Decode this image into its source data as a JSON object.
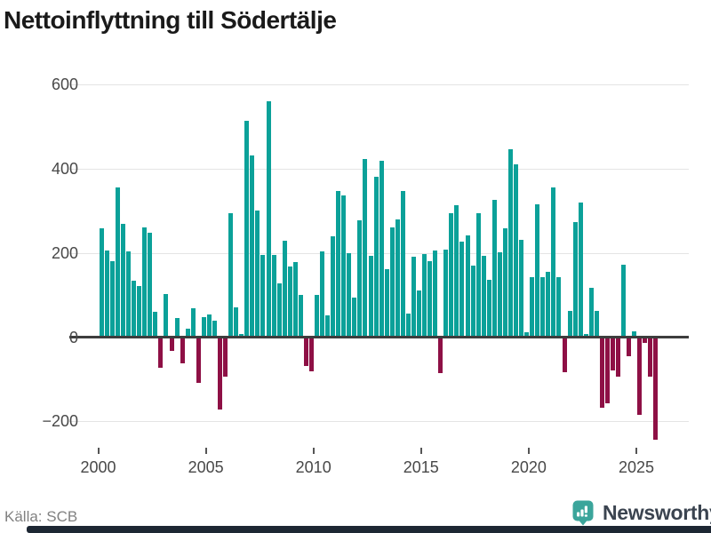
{
  "title": "Nettoinflyttning till Södertälje",
  "source": "Källa: SCB",
  "brand": {
    "name": "Newsworthy",
    "logo_icon": "speech-bubble-bar-chart-icon"
  },
  "colors": {
    "positive_bar": "#0ba199",
    "negative_bar": "#8e1045",
    "gridline": "#e4e4e4",
    "zero_axis": "#3d3d3d",
    "tick_label": "#484848",
    "source_text": "#818181",
    "brand_teal": "#3ba59b",
    "brand_text": "#3b4450",
    "bottom_bar": "#1d2733"
  },
  "chart_data": {
    "type": "bar",
    "title": "Nettoinflyttning till Södertälje",
    "xlabel": "",
    "ylabel": "",
    "frequency": "quarterly",
    "start_year": 2000,
    "start_quarter": 1,
    "x_tick_years": [
      2000,
      2005,
      2010,
      2015,
      2020,
      2025
    ],
    "x_tick_labels": [
      "2000",
      "2005",
      "2010",
      "2015",
      "2020",
      "2025"
    ],
    "y_ticks": [
      600,
      400,
      200,
      0,
      -200
    ],
    "y_tick_labels": [
      "600",
      "400",
      "200",
      "0",
      "−200"
    ],
    "ylim": [
      -280,
      660
    ],
    "grid": "horizontal",
    "legend": "none",
    "values": [
      255,
      203,
      177,
      353,
      265,
      200,
      130,
      118,
      257,
      245,
      56,
      -69,
      100,
      -30,
      43,
      -59,
      16,
      66,
      -106,
      45,
      50,
      36,
      -169,
      -91,
      292,
      67,
      4,
      510,
      429,
      297,
      191,
      556,
      191,
      124,
      226,
      164,
      174,
      96,
      -65,
      -78,
      98,
      200,
      49,
      236,
      344,
      334,
      196,
      91,
      274,
      420,
      190,
      377,
      416,
      158,
      258,
      277,
      343,
      52,
      188,
      107,
      194,
      177,
      202,
      -83,
      204,
      292,
      311,
      223,
      239,
      167,
      292,
      189,
      132,
      322,
      199,
      256,
      443,
      408,
      228,
      8,
      139,
      313,
      139,
      151,
      352,
      139,
      -80,
      60,
      270,
      317,
      4,
      113,
      60,
      -164,
      -154,
      -75,
      -90,
      169,
      -43,
      10,
      -181,
      -11,
      -91,
      -241
    ]
  }
}
